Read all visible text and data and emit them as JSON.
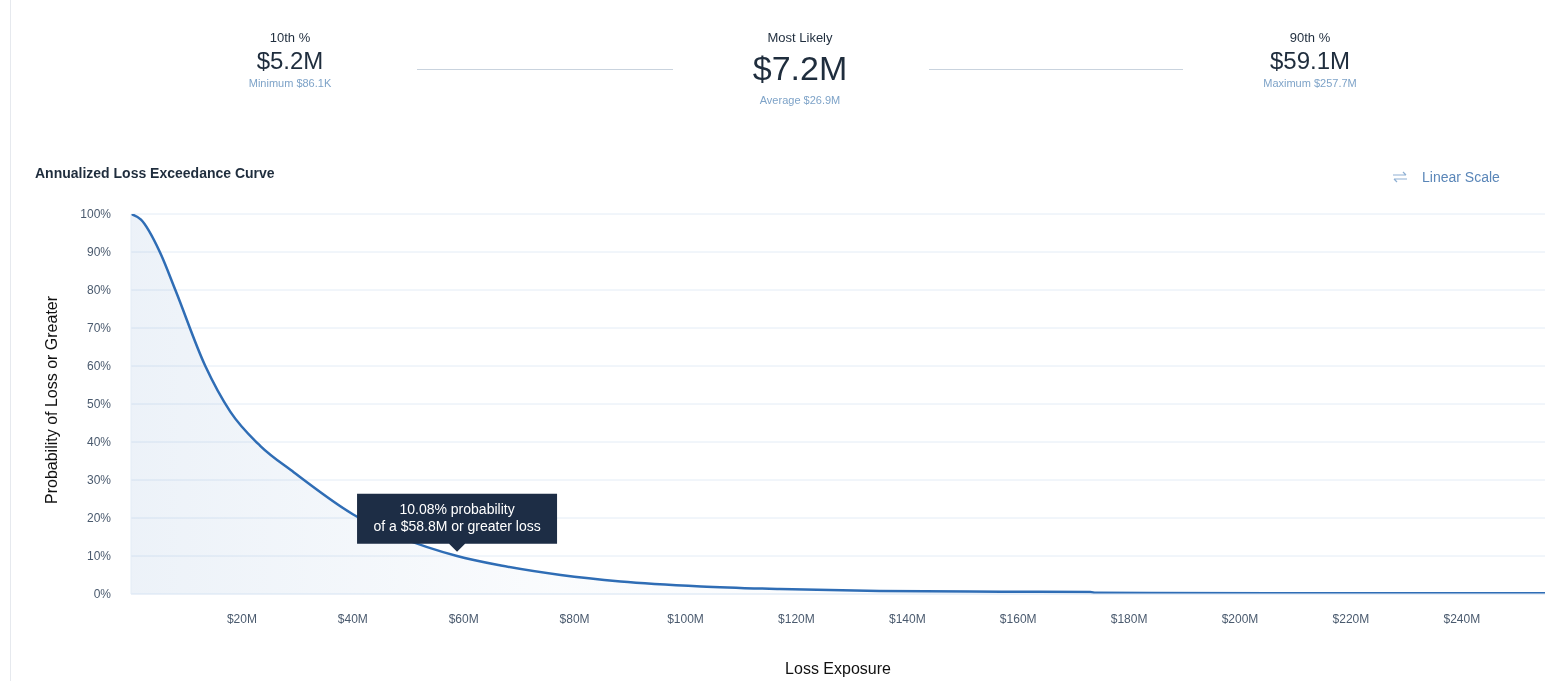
{
  "chart_data": {
    "type": "area",
    "title": "Annualized Loss Exceedance Curve",
    "xlabel": "Loss Exposure",
    "ylabel": "Probability of Loss or Greater",
    "annotations": [
      "10th %",
      "$5.2M",
      "Minimum $86.1K",
      "Most Likely",
      "$7.2M",
      "Average $26.9M",
      "90th %",
      "$59.1M",
      "Maximum $257.7M",
      "Linear Scale",
      {
        "text": "10.08% probability\nof a $58.8M or greater loss",
        "x": 58.8,
        "y": 10.08
      }
    ],
    "x": [
      0,
      1.8,
      5.2,
      8,
      13.4,
      17.9,
      23.3,
      29.4,
      40,
      58.8,
      66.7,
      77.5,
      88.3,
      102.8,
      117,
      135,
      157,
      173,
      174,
      210,
      255
    ],
    "series": [
      {
        "color": "#2f6db5",
        "values": [
          100,
          98.5,
          90,
          80,
          60,
          48,
          39,
          32,
          21,
          10,
          7.5,
          5,
          3.3,
          2,
          1.3,
          0.8,
          0.6,
          0.5,
          0.3,
          0.2,
          0.2
        ]
      }
    ],
    "xlim": [
      0,
      255
    ],
    "xticks": [
      {
        "value": 0,
        "label": null
      },
      {
        "value": 20,
        "label": "$20M"
      },
      {
        "value": 40,
        "label": "$40M"
      },
      {
        "value": 60,
        "label": "$60M"
      },
      {
        "value": 80,
        "label": "$80M"
      },
      {
        "value": 100,
        "label": "$100M"
      },
      {
        "value": 120,
        "label": "$120M"
      },
      {
        "value": 140,
        "label": "$140M"
      },
      {
        "value": 160,
        "label": "$160M"
      },
      {
        "value": 180,
        "label": "$180M"
      },
      {
        "value": 200,
        "label": "$200M"
      },
      {
        "value": 220,
        "label": "$220M"
      },
      {
        "value": 240,
        "label": "$240M"
      }
    ],
    "ylim": [
      0,
      100
    ],
    "yticks": [
      {
        "value": 0,
        "label": "0%"
      },
      {
        "value": 10,
        "label": "10%"
      },
      {
        "value": 20,
        "label": "20%"
      },
      {
        "value": 30,
        "label": "30%"
      },
      {
        "value": 40,
        "label": "40%"
      },
      {
        "value": 50,
        "label": "50%"
      },
      {
        "value": 60,
        "label": "60%"
      },
      {
        "value": 70,
        "label": "70%"
      },
      {
        "value": 80,
        "label": "80%"
      },
      {
        "value": 90,
        "label": "90%"
      },
      {
        "value": 100,
        "label": "100%"
      }
    ],
    "grid": "y"
  }
}
